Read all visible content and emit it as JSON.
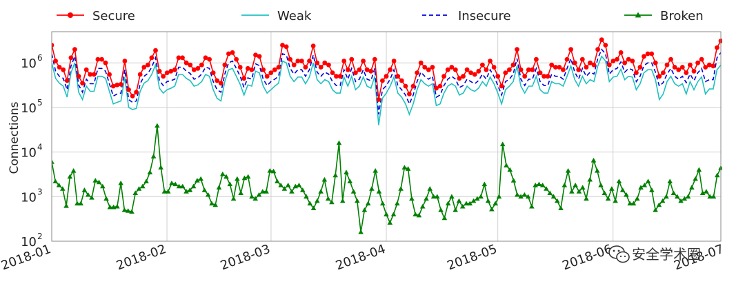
{
  "chart_data": {
    "type": "line",
    "title": "",
    "ylabel": "Connections",
    "yscale": "log",
    "ylim": [
      100,
      5000000
    ],
    "yticks": [
      {
        "value": 100,
        "base": "10",
        "exp": "2"
      },
      {
        "value": 1000,
        "base": "10",
        "exp": "3"
      },
      {
        "value": 10000,
        "base": "10",
        "exp": "4"
      },
      {
        "value": 100000,
        "base": "10",
        "exp": "5"
      },
      {
        "value": 1000000,
        "base": "10",
        "exp": "6"
      }
    ],
    "x_start": "2018-01-01",
    "x_end": "2018-06-30",
    "xticks": [
      {
        "label": "2018-01",
        "date": "2018-01-01"
      },
      {
        "label": "2018-02",
        "date": "2018-02-01"
      },
      {
        "label": "2018-03",
        "date": "2018-03-01"
      },
      {
        "label": "2018-04",
        "date": "2018-04-01"
      },
      {
        "label": "2018-05",
        "date": "2018-05-01"
      },
      {
        "label": "2018-06",
        "date": "2018-06-01"
      },
      {
        "label": "2018-07",
        "date": "2018-07-01"
      }
    ],
    "grid": true,
    "legend": "top",
    "series": [
      {
        "name": "Secure",
        "color": "#ff0000",
        "style": "solid",
        "marker": "circle",
        "values": [
          2500000,
          1100000,
          800000,
          700000,
          400000,
          1300000,
          2000000,
          500000,
          350000,
          700000,
          550000,
          550000,
          1200000,
          1200000,
          1000000,
          550000,
          300000,
          320000,
          330000,
          1100000,
          250000,
          180000,
          220000,
          550000,
          800000,
          900000,
          1300000,
          1900000,
          650000,
          500000,
          600000,
          650000,
          700000,
          1300000,
          1300000,
          1000000,
          900000,
          700000,
          750000,
          900000,
          1300000,
          1200000,
          600000,
          400000,
          350000,
          900000,
          1600000,
          1700000,
          1200000,
          800000,
          450000,
          750000,
          700000,
          1500000,
          1400000,
          700000,
          500000,
          600000,
          700000,
          800000,
          2500000,
          2300000,
          1200000,
          900000,
          1100000,
          1100000,
          800000,
          1100000,
          2400000,
          1000000,
          800000,
          1000000,
          900000,
          600000,
          500000,
          500000,
          1100000,
          700000,
          1200000,
          600000,
          700000,
          1100000,
          700000,
          650000,
          1200000,
          150000,
          400000,
          500000,
          700000,
          1100000,
          500000,
          400000,
          300000,
          200000,
          300000,
          600000,
          1000000,
          800000,
          700000,
          800000,
          270000,
          300000,
          500000,
          700000,
          800000,
          700000,
          450000,
          500000,
          700000,
          600000,
          550000,
          650000,
          900000,
          700000,
          1100000,
          800000,
          500000,
          300000,
          600000,
          700000,
          900000,
          2000000,
          700000,
          500000,
          700000,
          700000,
          1200000,
          600000,
          500000,
          500000,
          900000,
          800000,
          800000,
          700000,
          1200000,
          2000000,
          1000000,
          700000,
          1200000,
          800000,
          1000000,
          900000,
          2000000,
          3300000,
          2500000,
          900000,
          1100000,
          1200000,
          1700000,
          1000000,
          1200000,
          1100000,
          600000,
          800000,
          1400000,
          1600000,
          1600000,
          1000000,
          500000,
          600000,
          900000,
          1200000,
          800000,
          700000,
          800000,
          600000,
          900000,
          650000,
          1000000,
          1200000,
          800000,
          900000,
          850000,
          2200000,
          3100000
        ]
      },
      {
        "name": "Weak",
        "color": "#20c0c0",
        "style": "solid",
        "marker": "none",
        "values": [
          1000000,
          450000,
          350000,
          300000,
          170000,
          600000,
          1000000,
          220000,
          150000,
          300000,
          230000,
          230000,
          500000,
          500000,
          450000,
          230000,
          120000,
          130000,
          140000,
          480000,
          100000,
          90000,
          95000,
          230000,
          350000,
          400000,
          550000,
          900000,
          270000,
          210000,
          250000,
          270000,
          300000,
          550000,
          550000,
          450000,
          400000,
          300000,
          320000,
          380000,
          550000,
          500000,
          250000,
          160000,
          140000,
          380000,
          700000,
          750000,
          500000,
          330000,
          190000,
          320000,
          300000,
          650000,
          600000,
          300000,
          210000,
          250000,
          300000,
          350000,
          1100000,
          1000000,
          500000,
          380000,
          480000,
          480000,
          340000,
          480000,
          1000000,
          420000,
          340000,
          420000,
          380000,
          250000,
          210000,
          210000,
          480000,
          300000,
          500000,
          250000,
          300000,
          480000,
          300000,
          270000,
          500000,
          40000,
          160000,
          210000,
          300000,
          480000,
          210000,
          170000,
          120000,
          70000,
          120000,
          250000,
          420000,
          340000,
          300000,
          340000,
          110000,
          120000,
          210000,
          300000,
          340000,
          300000,
          190000,
          210000,
          300000,
          250000,
          230000,
          270000,
          380000,
          300000,
          480000,
          340000,
          210000,
          120000,
          250000,
          300000,
          380000,
          850000,
          300000,
          210000,
          300000,
          300000,
          500000,
          250000,
          210000,
          210000,
          380000,
          340000,
          340000,
          300000,
          500000,
          850000,
          420000,
          300000,
          500000,
          340000,
          420000,
          380000,
          850000,
          1400000,
          1100000,
          380000,
          480000,
          500000,
          720000,
          420000,
          500000,
          480000,
          250000,
          340000,
          600000,
          700000,
          700000,
          420000,
          150000,
          200000,
          380000,
          500000,
          340000,
          300000,
          340000,
          200000,
          380000,
          250000,
          380000,
          480000,
          200000,
          260000,
          260000,
          700000,
          900000
        ]
      },
      {
        "name": "Insecure",
        "color": "#0000dd",
        "style": "dashed",
        "marker": "none",
        "values": [
          1600000,
          650000,
          500000,
          450000,
          250000,
          850000,
          1400000,
          320000,
          220000,
          430000,
          340000,
          340000,
          750000,
          750000,
          650000,
          340000,
          180000,
          200000,
          210000,
          700000,
          150000,
          130000,
          140000,
          340000,
          500000,
          580000,
          800000,
          1300000,
          400000,
          310000,
          380000,
          400000,
          430000,
          800000,
          800000,
          650000,
          580000,
          430000,
          460000,
          560000,
          800000,
          750000,
          380000,
          250000,
          220000,
          560000,
          1000000,
          1100000,
          750000,
          500000,
          280000,
          460000,
          430000,
          950000,
          870000,
          430000,
          310000,
          380000,
          430000,
          500000,
          1600000,
          1500000,
          750000,
          560000,
          700000,
          700000,
          500000,
          700000,
          1500000,
          620000,
          500000,
          620000,
          560000,
          380000,
          310000,
          310000,
          700000,
          430000,
          750000,
          380000,
          430000,
          700000,
          430000,
          400000,
          750000,
          70000,
          250000,
          310000,
          430000,
          700000,
          310000,
          250000,
          190000,
          120000,
          190000,
          380000,
          620000,
          500000,
          430000,
          500000,
          170000,
          190000,
          310000,
          430000,
          500000,
          430000,
          280000,
          310000,
          430000,
          380000,
          340000,
          400000,
          560000,
          430000,
          700000,
          500000,
          310000,
          190000,
          380000,
          430000,
          560000,
          1250000,
          430000,
          310000,
          430000,
          430000,
          750000,
          380000,
          310000,
          310000,
          560000,
          500000,
          500000,
          430000,
          750000,
          1250000,
          620000,
          430000,
          750000,
          500000,
          620000,
          560000,
          1250000,
          2000000,
          1600000,
          560000,
          700000,
          750000,
          1050000,
          620000,
          750000,
          700000,
          380000,
          500000,
          870000,
          1000000,
          1000000,
          620000,
          300000,
          360000,
          560000,
          750000,
          500000,
          430000,
          500000,
          360000,
          560000,
          400000,
          600000,
          750000,
          380000,
          420000,
          420000,
          1300000,
          1700000
        ]
      },
      {
        "name": "Broken",
        "color": "#008000",
        "style": "solid",
        "marker": "triangle",
        "values": [
          6000,
          2200,
          1800,
          1500,
          620,
          2800,
          3800,
          700,
          700,
          1400,
          1100,
          950,
          2300,
          2100,
          1700,
          900,
          580,
          580,
          600,
          2000,
          500,
          480,
          460,
          1200,
          1500,
          1700,
          2200,
          3500,
          8000,
          39000,
          4500,
          1300,
          1300,
          2000,
          1900,
          1700,
          1700,
          1300,
          1400,
          1700,
          2300,
          2500,
          1400,
          1100,
          700,
          650,
          1600,
          3200,
          2800,
          1900,
          900,
          2500,
          1200,
          2600,
          2800,
          1000,
          900,
          1100,
          1300,
          1300,
          3800,
          3700,
          2200,
          1800,
          1500,
          1800,
          1300,
          1700,
          1800,
          1400,
          1000,
          700,
          550,
          800,
          1300,
          2400,
          900,
          750,
          3000,
          16000,
          800,
          3500,
          2200,
          1300,
          800,
          160,
          500,
          700,
          1500,
          3800,
          1300,
          700,
          400,
          260,
          400,
          700,
          1500,
          4500,
          4200,
          900,
          400,
          380,
          600,
          900,
          1500,
          1000,
          1000,
          500,
          330,
          700,
          1000,
          500,
          800,
          600,
          700,
          700,
          800,
          900,
          1000,
          1900,
          800,
          520,
          700,
          1000,
          15000,
          5000,
          4000,
          2300,
          1100,
          1000,
          1100,
          1000,
          600,
          1800,
          1900,
          1800,
          1500,
          1200,
          1000,
          800,
          550,
          1800,
          3800,
          1300,
          1800,
          1300,
          1600,
          900,
          2400,
          6500,
          3800,
          1800,
          1200,
          900,
          1500,
          800,
          2200,
          1400,
          1100,
          700,
          700,
          900,
          1600,
          1800,
          2200,
          1400,
          500,
          650,
          800,
          1000,
          2200,
          1200,
          1000,
          800,
          900,
          1000,
          1600,
          2500,
          4000,
          1200,
          1300,
          1000,
          1000,
          3000,
          4400
        ]
      }
    ]
  },
  "watermark": {
    "text": "安全学术圈",
    "icon": "wechat-icon"
  }
}
